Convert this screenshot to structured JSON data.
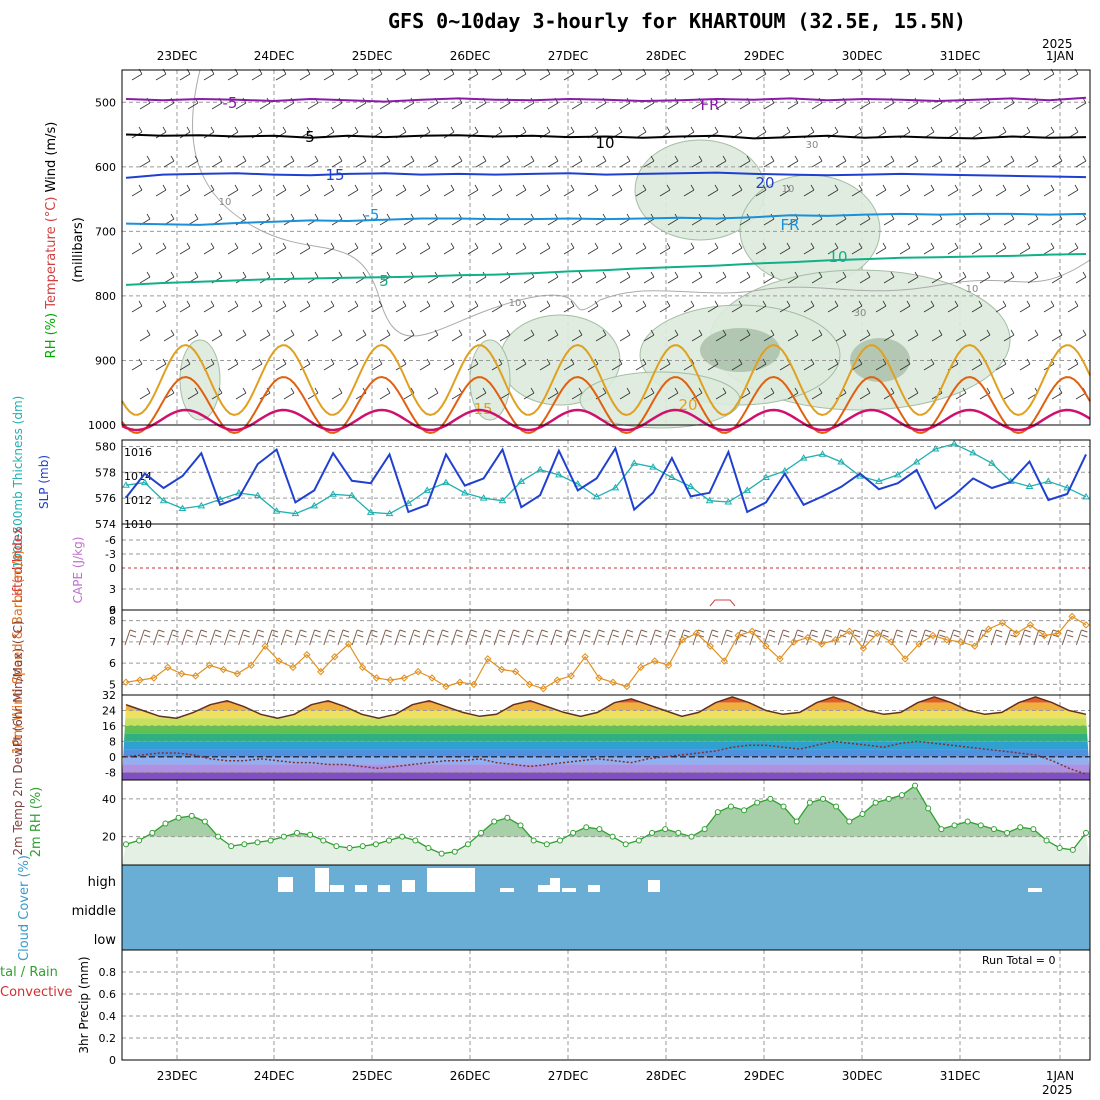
{
  "title": "GFS 0~10day 3-hourly for KHARTOUM (32.5E, 15.5N)",
  "year_label": "2025",
  "date_labels": [
    "23DEC",
    "24DEC",
    "25DEC",
    "26DEC",
    "27DEC",
    "28DEC",
    "29DEC",
    "30DEC",
    "31DEC",
    "1JAN"
  ],
  "run_total": "Run Total = 0",
  "colors": {
    "temp_purple": "#8a1aa8",
    "temp_black": "#000000",
    "temp_blue": "#1f3fd0",
    "temp_lightblue": "#1a90d8",
    "temp_green": "#10b088",
    "temp_orange": "#e0a020",
    "temp_darkorange": "#e06010",
    "temp_magenta": "#d0106e",
    "rh_fill": "#dcebdc",
    "thickness": "#20b0b0",
    "slp": "#2040d0",
    "wind_speed": "#e09020",
    "barb": "#806050",
    "rh2m": "#30a030",
    "cloud": "#6aaed6",
    "lifted": "#d03030"
  },
  "chart_data": [
    {
      "type": "line",
      "title": "",
      "panel": "upper-air",
      "ylabel_parts": [
        "RH (%)",
        "Temperature (°C)",
        "Wind (m/s)"
      ],
      "ylabel_side": "(millibars)",
      "y_ticks": [
        500,
        600,
        700,
        800,
        900,
        1000
      ],
      "ylim": [
        450,
        1000
      ],
      "contour_labels": [
        "-5",
        "FR",
        "5",
        "10",
        "15",
        "20",
        "-5",
        "FR",
        "5",
        "10",
        "15",
        "20"
      ],
      "rh_labels": [
        "10",
        "30",
        "10",
        "10",
        "30",
        "10"
      ],
      "series": [
        {
          "label": "-5",
          "values": [
            495,
            497,
            495,
            496,
            498,
            495,
            497,
            499,
            496,
            494,
            496,
            497,
            495,
            496,
            498,
            497,
            495,
            496,
            494,
            497,
            495,
            496,
            498,
            496,
            494,
            497,
            493
          ]
        },
        {
          "label": "FR",
          "values": [
            550,
            552,
            551,
            553,
            552,
            555,
            552,
            554,
            552,
            551,
            553,
            552,
            554,
            553,
            555,
            553,
            552,
            556,
            554,
            552,
            555,
            553,
            555,
            556,
            553,
            555,
            554
          ]
        },
        {
          "label": "5",
          "values": [
            617,
            612,
            611,
            610,
            612,
            613,
            611,
            610,
            612,
            611,
            612,
            611,
            610,
            612,
            611,
            610,
            609,
            611,
            612,
            613,
            612,
            611,
            612,
            613,
            614,
            615,
            616
          ]
        },
        {
          "label": "10",
          "values": [
            688,
            689,
            690,
            687,
            685,
            683,
            684,
            682,
            680,
            680,
            681,
            681,
            680,
            681,
            680,
            679,
            680,
            678,
            675,
            676,
            674,
            673,
            674,
            673,
            673,
            674,
            673
          ]
        },
        {
          "label": "15",
          "values": [
            783,
            780,
            778,
            776,
            774,
            773,
            772,
            771,
            770,
            768,
            767,
            765,
            762,
            760,
            757,
            755,
            753,
            750,
            748,
            745,
            743,
            741,
            740,
            739,
            738,
            736,
            735
          ]
        }
      ]
    },
    {
      "type": "line",
      "panel": "thickness-slp",
      "ylabel_left": "1000-500mb Thickness (dm)",
      "ylabel_right": "SLP (mb)",
      "thickness_ticks": [
        574,
        576,
        578,
        580
      ],
      "slp_ticks": [
        1010,
        1012,
        1014,
        1016
      ],
      "series": [
        {
          "name": "Thickness",
          "values": [
            577.0,
            577.2,
            575.8,
            575.2,
            575.4,
            575.9,
            576.4,
            576.2,
            575.0,
            574.8,
            575.4,
            576.3,
            576.2,
            574.9,
            574.8,
            575.6,
            576.6,
            577.2,
            576.4,
            576.0,
            575.8,
            577.3,
            578.2,
            577.8,
            577.1,
            576.1,
            576.8,
            578.7,
            578.4,
            577.6,
            576.9,
            575.8,
            575.7,
            576.6,
            577.6,
            578.1,
            579.1,
            579.4,
            578.8,
            577.7,
            577.3,
            577.8,
            578.8,
            579.8,
            580.2,
            579.5,
            578.7,
            577.3,
            576.9,
            577.3,
            576.8,
            576.1
          ]
        },
        {
          "name": "SLP",
          "values": [
            1012.2,
            1014.2,
            1013.0,
            1014.0,
            1015.9,
            1011.6,
            1012.2,
            1015.0,
            1016.2,
            1011.8,
            1012.8,
            1015.9,
            1013.6,
            1013.4,
            1015.8,
            1011.0,
            1011.6,
            1015.8,
            1013.2,
            1013.8,
            1016.2,
            1011.4,
            1012.4,
            1016.1,
            1012.8,
            1013.8,
            1016.3,
            1011.2,
            1012.6,
            1015.5,
            1012.3,
            1012.6,
            1016.0,
            1011.0,
            1011.8,
            1014.2,
            1011.6,
            1012.3,
            1013.1,
            1014.2,
            1012.9,
            1013.4,
            1014.5,
            1011.3,
            1012.4,
            1013.8,
            1013.0,
            1013.5,
            1015.2,
            1012.0,
            1012.5,
            1015.8
          ]
        }
      ]
    },
    {
      "type": "line",
      "panel": "lifted-cape",
      "ylabel_left": "Lifted Index",
      "ylabel_right": "CAPE (J/kg)",
      "y_ticks": [
        "-6",
        "-3",
        "0",
        "3",
        "6"
      ],
      "series": [
        {
          "name": "Lifted Index",
          "values": []
        },
        {
          "name": "CAPE",
          "values": []
        }
      ]
    },
    {
      "type": "line",
      "panel": "wind10m",
      "ylabel": "10m Wind Speed & Barbs (m/s)",
      "y_ticks": [
        5,
        6,
        7,
        8
      ],
      "ylim": [
        4.5,
        8.5
      ],
      "series": [
        {
          "name": "10m Wind Speed",
          "values": [
            5.1,
            5.2,
            5.3,
            5.8,
            5.5,
            5.4,
            5.9,
            5.7,
            5.5,
            5.9,
            6.8,
            6.1,
            5.8,
            6.4,
            5.6,
            6.3,
            6.9,
            5.8,
            5.3,
            5.2,
            5.3,
            5.6,
            5.3,
            4.9,
            5.1,
            5.0,
            6.2,
            5.7,
            5.6,
            5.0,
            4.8,
            5.2,
            5.4,
            6.3,
            5.3,
            5.1,
            4.9,
            5.8,
            6.1,
            5.9,
            7.1,
            7.4,
            6.8,
            6.1,
            7.3,
            7.5,
            6.8,
            6.2,
            7.0,
            7.2,
            6.9,
            7.1,
            7.5,
            6.7,
            7.4,
            7.0,
            6.2,
            6.9,
            7.3,
            7.1,
            7.0,
            6.8,
            7.6,
            7.9,
            7.4,
            7.8,
            7.3,
            7.4,
            8.2,
            7.8
          ]
        }
      ]
    },
    {
      "type": "area",
      "panel": "temp2m",
      "ylabel": "2m Temp 2m DewPt (6hr Min/Max) (°C)",
      "y_ticks": [
        32,
        24,
        16,
        8,
        0,
        -8
      ],
      "ylim": [
        -12,
        32
      ],
      "series": [
        {
          "name": "2m Temp",
          "values": [
            27,
            24,
            21,
            20,
            23,
            27,
            29,
            26,
            22,
            20,
            22,
            27,
            29,
            26,
            22,
            20,
            22,
            27,
            29,
            26,
            23,
            21,
            22,
            27,
            29,
            26,
            23,
            21,
            23,
            28,
            30,
            27,
            24,
            21,
            23,
            28,
            31,
            28,
            24,
            22,
            23,
            28,
            31,
            28,
            24,
            22,
            23,
            28,
            31,
            28,
            24,
            22,
            23,
            28,
            31,
            28,
            24,
            22
          ]
        },
        {
          "name": "2m DewPt",
          "values": [
            0,
            1,
            2,
            2,
            1,
            -1,
            -2,
            -2,
            -1,
            -2,
            -3,
            -3,
            -4,
            -4,
            -5,
            -6,
            -5,
            -4,
            -3,
            -2,
            -2,
            -1,
            -3,
            -4,
            -5,
            -4,
            -3,
            -2,
            -1,
            -2,
            -3,
            -1,
            0,
            1,
            2,
            3,
            5,
            6,
            6,
            5,
            4,
            6,
            8,
            7,
            6,
            5,
            7,
            8,
            7,
            6,
            5,
            4,
            3,
            2,
            1,
            -2,
            -6,
            -9
          ]
        }
      ]
    },
    {
      "type": "line",
      "panel": "rh2m",
      "ylabel": "2m RH (%)",
      "y_ticks": [
        20,
        40
      ],
      "ylim": [
        5,
        50
      ],
      "series": [
        {
          "name": "2m RH",
          "values": [
            16,
            18,
            22,
            27,
            30,
            31,
            28,
            20,
            15,
            16,
            17,
            18,
            20,
            22,
            21,
            18,
            15,
            14,
            15,
            16,
            18,
            20,
            18,
            14,
            11,
            12,
            16,
            22,
            28,
            30,
            26,
            18,
            16,
            18,
            22,
            25,
            24,
            20,
            16,
            18,
            22,
            24,
            22,
            20,
            24,
            33,
            36,
            34,
            38,
            40,
            36,
            28,
            38,
            40,
            36,
            28,
            32,
            38,
            40,
            42,
            47,
            35,
            24,
            26,
            28,
            26,
            24,
            22,
            25,
            24,
            18,
            14,
            13,
            22
          ]
        }
      ]
    },
    {
      "type": "bar",
      "panel": "cloud",
      "ylabel": "Cloud Cover (%)",
      "levels": [
        "high",
        "middle",
        "low"
      ],
      "series": [
        {
          "name": "high",
          "values": []
        },
        {
          "name": "middle",
          "values": []
        },
        {
          "name": "low",
          "values": []
        }
      ]
    },
    {
      "type": "bar",
      "panel": "precip",
      "ylabel_left": "Total / Rain Convective",
      "ylabel_right": "3hr Precip (mm)",
      "y_ticks": [
        "0",
        "0.2",
        "0.4",
        "0.6",
        "0.8"
      ],
      "ylim": [
        0,
        1.0
      ],
      "series": [
        {
          "name": "Total",
          "values": []
        },
        {
          "name": "Convective",
          "values": []
        }
      ]
    }
  ]
}
